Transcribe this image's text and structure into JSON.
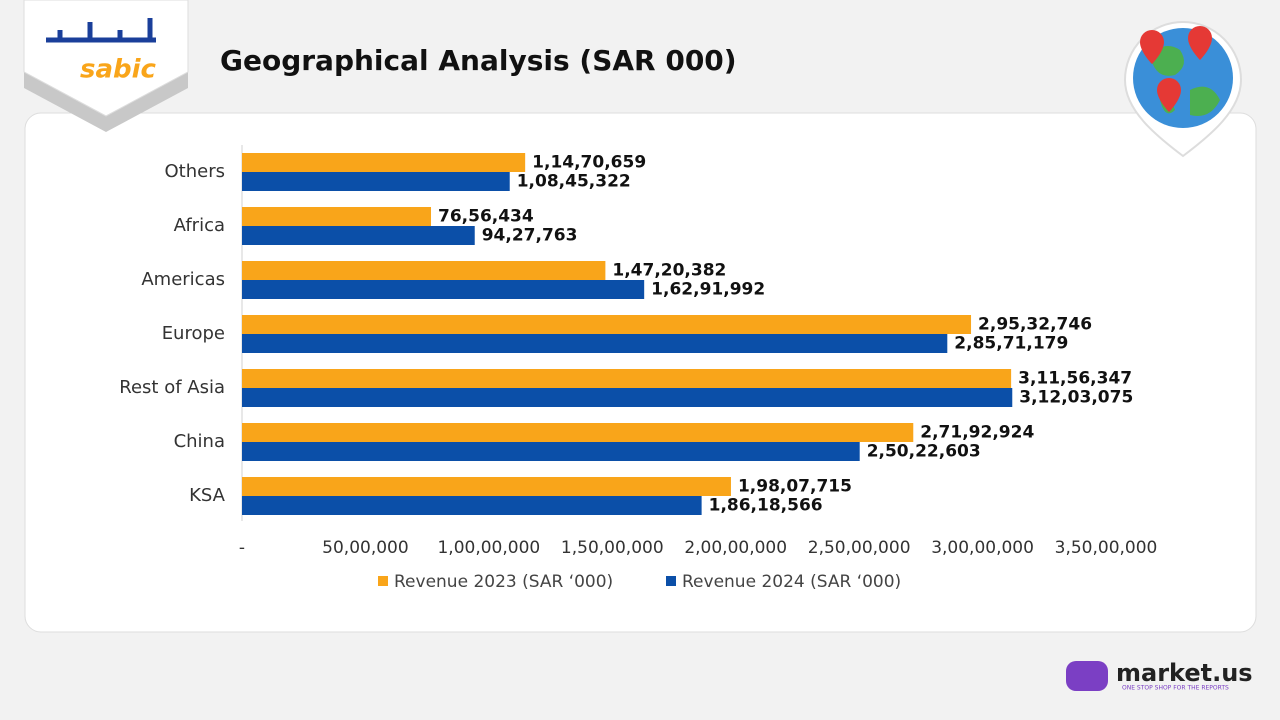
{
  "chart_data": {
    "type": "hbar",
    "title": "Geographical Analysis (SAR 000)",
    "categories": [
      "Others",
      "Africa",
      "Americas",
      "Europe",
      "Rest of Asia",
      "China",
      "KSA"
    ],
    "series": [
      {
        "name": "Revenue 2023 (SAR ‘000)",
        "color": "#f9a51a",
        "values": [
          11470659,
          7656434,
          14720382,
          29532746,
          31156347,
          27192924,
          19807715
        ],
        "value_labels": [
          "1,14,70,659",
          "76,56,434",
          "1,47,20,382",
          "2,95,32,746",
          "3,11,56,347",
          "2,71,92,924",
          "1,98,07,715"
        ]
      },
      {
        "name": "Revenue 2024 (SAR ‘000)",
        "color": "#0b4fa8",
        "values": [
          10845322,
          9427763,
          16291992,
          28571179,
          31203075,
          25022603,
          18618566
        ],
        "value_labels": [
          "1,08,45,322",
          "94,27,763",
          "1,62,91,992",
          "2,85,71,179",
          "3,12,03,075",
          "2,50,22,603",
          "1,86,18,566"
        ]
      }
    ],
    "xlim": [
      0,
      35000000
    ],
    "xticks": [
      {
        "value": 0,
        "label": "-"
      },
      {
        "value": 5000000,
        "label": "50,00,000"
      },
      {
        "value": 10000000,
        "label": "1,00,00,000"
      },
      {
        "value": 15000000,
        "label": "1,50,00,000"
      },
      {
        "value": 20000000,
        "label": "2,00,00,000"
      },
      {
        "value": 25000000,
        "label": "2,50,00,000"
      },
      {
        "value": 30000000,
        "label": "3,00,00,000"
      },
      {
        "value": 35000000,
        "label": "3,50,00,000"
      }
    ],
    "legend": "bottom",
    "grid": false
  },
  "header_logo": {
    "text": "sabic"
  },
  "footer_logo": {
    "name": "market.us",
    "tagline": "ONE STOP SHOP FOR THE REPORTS"
  }
}
